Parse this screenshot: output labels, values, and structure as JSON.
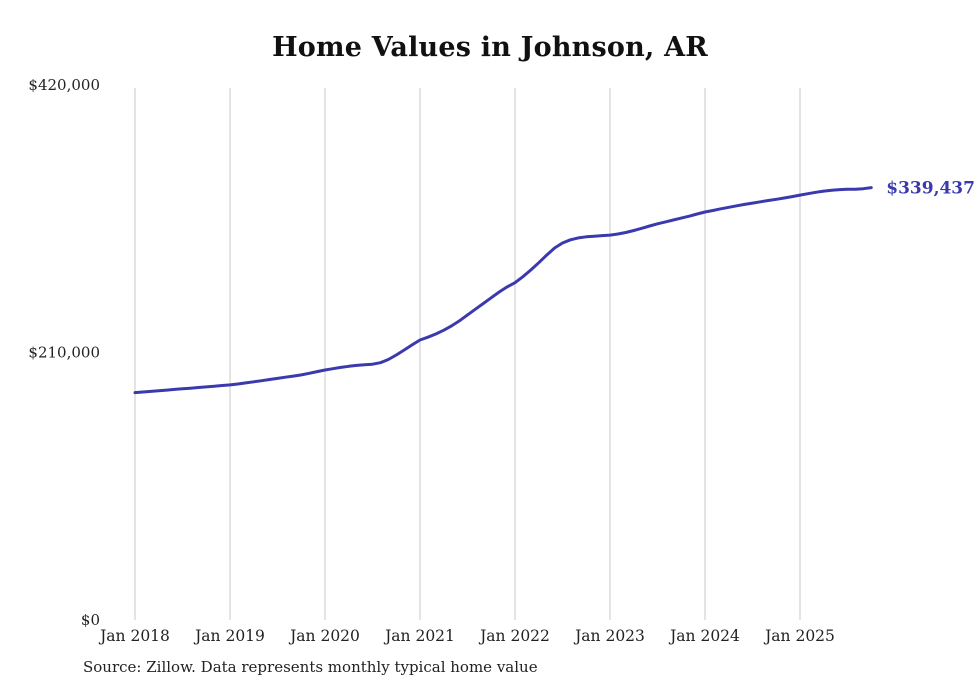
{
  "chart": {
    "title": "Home Values in Johnson, AR",
    "source": "Source: Zillow. Data represents monthly typical home value",
    "end_label": "$339,437",
    "line_color": "#3a3aae",
    "grid_color": "#c9c9c9",
    "text_color": "#222222"
  },
  "chart_data": {
    "type": "line",
    "title": "Home Values in Johnson, AR",
    "xlabel": "",
    "ylabel": "",
    "ylim": [
      0,
      420000
    ],
    "grid": "vertical-only",
    "legend": "none",
    "y_ticks": [
      {
        "label": "$0",
        "value": 0
      },
      {
        "label": "$210,000",
        "value": 210000
      },
      {
        "label": "$420,000",
        "value": 420000
      }
    ],
    "x_ticks": [
      "Jan 2018",
      "Jan 2019",
      "Jan 2020",
      "Jan 2021",
      "Jan 2022",
      "Jan 2023",
      "Jan 2024",
      "Jan 2025"
    ],
    "series": [
      {
        "name": "Typical home value",
        "frequency": "monthly",
        "x_start": "Jan 2018",
        "x_end": "Oct 2025",
        "final_value_label": "$339,437",
        "months": [
          "Jan 2018",
          "Feb 2018",
          "Mar 2018",
          "Apr 2018",
          "May 2018",
          "Jun 2018",
          "Jul 2018",
          "Aug 2018",
          "Sep 2018",
          "Oct 2018",
          "Nov 2018",
          "Dec 2018",
          "Jan 2019",
          "Feb 2019",
          "Mar 2019",
          "Apr 2019",
          "May 2019",
          "Jun 2019",
          "Jul 2019",
          "Aug 2019",
          "Sep 2019",
          "Oct 2019",
          "Nov 2019",
          "Dec 2019",
          "Jan 2020",
          "Feb 2020",
          "Mar 2020",
          "Apr 2020",
          "May 2020",
          "Jun 2020",
          "Jul 2020",
          "Aug 2020",
          "Sep 2020",
          "Oct 2020",
          "Nov 2020",
          "Dec 2020",
          "Jan 2021",
          "Feb 2021",
          "Mar 2021",
          "Apr 2021",
          "May 2021",
          "Jun 2021",
          "Jul 2021",
          "Aug 2021",
          "Sep 2021",
          "Oct 2021",
          "Nov 2021",
          "Dec 2021",
          "Jan 2022",
          "Feb 2022",
          "Mar 2022",
          "Apr 2022",
          "May 2022",
          "Jun 2022",
          "Jul 2022",
          "Aug 2022",
          "Sep 2022",
          "Oct 2022",
          "Nov 2022",
          "Dec 2022",
          "Jan 2023",
          "Feb 2023",
          "Mar 2023",
          "Apr 2023",
          "May 2023",
          "Jun 2023",
          "Jul 2023",
          "Aug 2023",
          "Sep 2023",
          "Oct 2023",
          "Nov 2023",
          "Dec 2023",
          "Jan 2024",
          "Feb 2024",
          "Mar 2024",
          "Apr 2024",
          "May 2024",
          "Jun 2024",
          "Jul 2024",
          "Aug 2024",
          "Sep 2024",
          "Oct 2024",
          "Nov 2024",
          "Dec 2024",
          "Jan 2025",
          "Feb 2025",
          "Mar 2025",
          "Apr 2025",
          "May 2025",
          "Jun 2025",
          "Jul 2025",
          "Aug 2025",
          "Sep 2025",
          "Oct 2025"
        ],
        "values": [
          178500,
          179000,
          179500,
          180000,
          180500,
          181000,
          181500,
          182000,
          182500,
          183000,
          183500,
          184100,
          184600,
          185300,
          186100,
          187000,
          187900,
          188800,
          189700,
          190600,
          191500,
          192400,
          193700,
          195000,
          196300,
          197300,
          198300,
          199200,
          199900,
          200400,
          200800,
          202000,
          204500,
          208000,
          212000,
          216000,
          219800,
          222000,
          224500,
          227500,
          231000,
          235000,
          239500,
          244000,
          248500,
          253000,
          257500,
          261500,
          264800,
          269500,
          274800,
          280500,
          286500,
          292000,
          296000,
          298500,
          300000,
          300800,
          301300,
          301800,
          302200,
          303000,
          304200,
          305800,
          307500,
          309300,
          311000,
          312500,
          314000,
          315500,
          317000,
          318700,
          320300,
          321500,
          322800,
          324000,
          325200,
          326300,
          327300,
          328300,
          329300,
          330300,
          331300,
          332400,
          333600,
          334700,
          335800,
          336700,
          337400,
          337900,
          338200,
          338100,
          338600,
          339437
        ]
      }
    ]
  }
}
